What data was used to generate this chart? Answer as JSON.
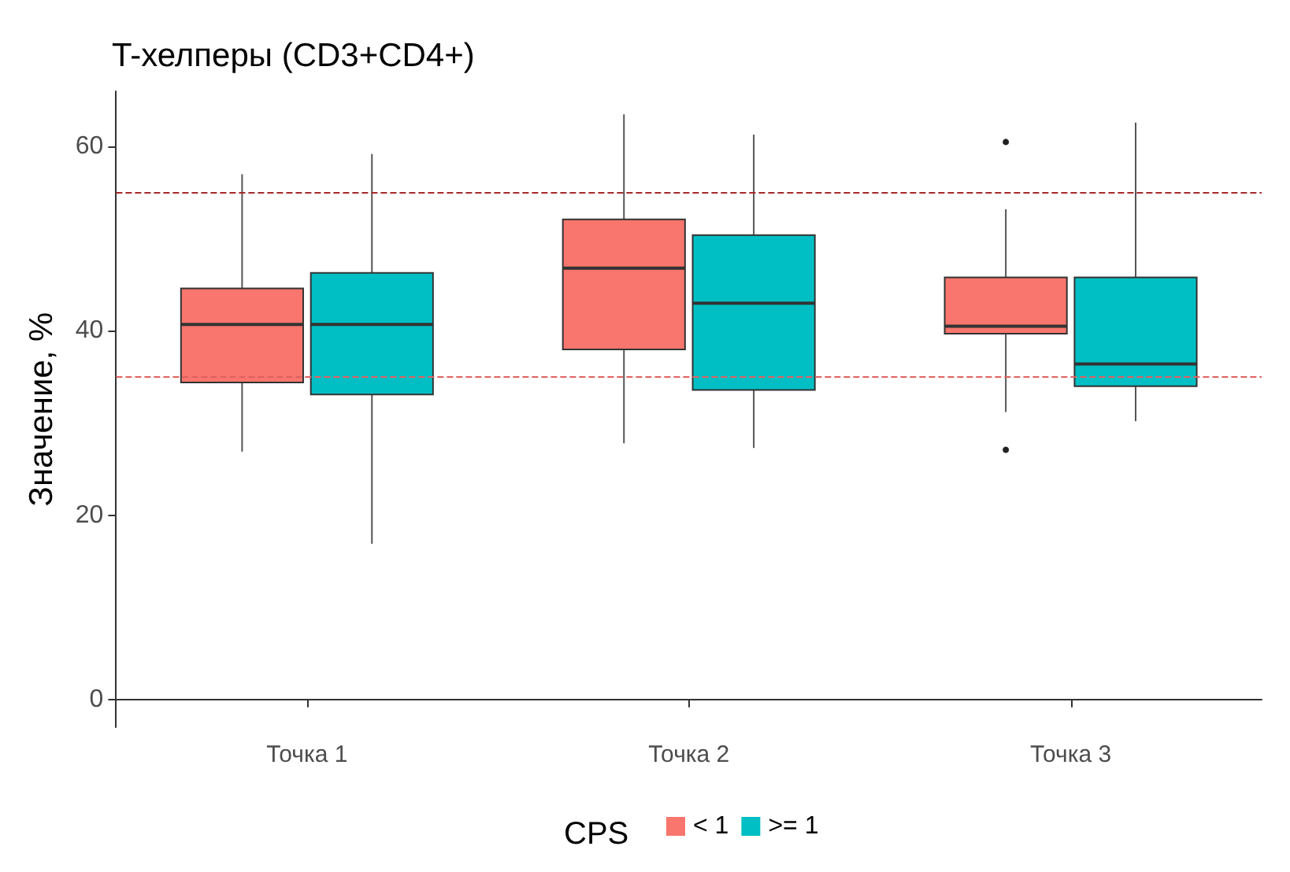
{
  "chart_data": {
    "type": "box",
    "title": "T-хелперы (CD3+CD4+)",
    "ylabel": "Значение, %",
    "legend_title": "CPS",
    "categories": [
      "Точка 1",
      "Точка 2",
      "Точка 3"
    ],
    "series": [
      {
        "name": "< 1",
        "color": "#f8766d",
        "boxes": [
          {
            "low": 26.9,
            "q1": 34.4,
            "median": 40.7,
            "q3": 44.6,
            "high": 57.0
          },
          {
            "low": 27.8,
            "q1": 38.0,
            "median": 46.8,
            "q3": 52.1,
            "high": 63.5
          },
          {
            "low": 31.2,
            "q1": 39.7,
            "median": 40.5,
            "q3": 45.8,
            "high": 53.2,
            "outliers": [
              60.5,
              27.1
            ]
          }
        ]
      },
      {
        "name": ">= 1",
        "color": "#00bfc4",
        "boxes": [
          {
            "low": 16.9,
            "q1": 33.1,
            "median": 40.7,
            "q3": 46.3,
            "high": 59.2
          },
          {
            "low": 27.3,
            "q1": 33.6,
            "median": 43.0,
            "q3": 50.4,
            "high": 61.3
          },
          {
            "low": 30.2,
            "q1": 34.0,
            "median": 36.4,
            "q3": 45.8,
            "high": 62.6
          }
        ]
      }
    ],
    "ylim": [
      -3,
      66
    ],
    "yticks": [
      0,
      20,
      40,
      60
    ],
    "ref_lines": [
      {
        "axis": "y",
        "value": 55,
        "color": "#a52a2a",
        "line_style": "dashed"
      },
      {
        "axis": "y",
        "value": 35,
        "color": "#e06060",
        "line_style": "dashed"
      }
    ],
    "grid": false,
    "legend": "bottom"
  }
}
